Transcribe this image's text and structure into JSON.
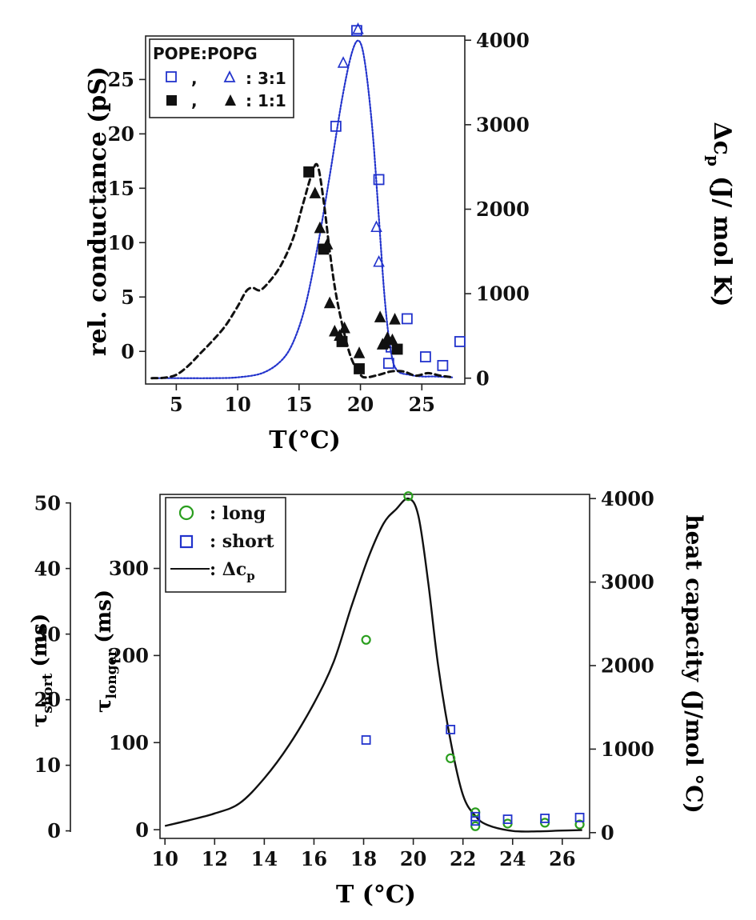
{
  "chart_data": [
    {
      "type": "line+scatter",
      "xlabel": "T(°C)",
      "ylabel_left": "rel. conductance (pS)",
      "ylabel_right": "Δc",
      "ylabel_right_sub": "p",
      "ylabel_right_units": "(J/ mol K)",
      "xlim": [
        2.5,
        28.5
      ],
      "ylim_left": [
        -3,
        29
      ],
      "ylim_right": [
        -50,
        4050
      ],
      "xticks": [
        5,
        10,
        15,
        20,
        25
      ],
      "yticks_left": [
        0,
        5,
        10,
        15,
        20,
        25
      ],
      "yticks_right": [
        0,
        1000,
        2000,
        3000,
        4000
      ],
      "legend": {
        "title": "POPE:POPG",
        "sep": ",",
        "rows": [
          {
            "label": ":  3:1",
            "color": "#2233cc",
            "markers": [
              "open-square",
              "open-triangle"
            ]
          },
          {
            "label": ":  1:1",
            "color": "#111111",
            "markers": [
              "filled-square",
              "filled-triangle"
            ]
          }
        ]
      },
      "series": [
        {
          "name": "Δcp 3:1",
          "axis": "right",
          "style": "dotted",
          "color": "#2233cc",
          "x": [
            3,
            5,
            8,
            10,
            12,
            13.5,
            14.5,
            15.5,
            16.5,
            17.5,
            18.5,
            19.3,
            19.9,
            20.4,
            21,
            21.5,
            22,
            22.5,
            23,
            24,
            25,
            26,
            27.5
          ],
          "y": [
            0,
            0,
            0,
            10,
            60,
            200,
            420,
            850,
            1550,
            2400,
            3300,
            3850,
            3990,
            3700,
            2900,
            1900,
            900,
            300,
            90,
            40,
            20,
            20,
            10
          ]
        },
        {
          "name": "Δcp 1:1",
          "axis": "right",
          "style": "dashed",
          "color": "#111111",
          "x": [
            3,
            4,
            5,
            6,
            7,
            8,
            9,
            10,
            10.7,
            11.2,
            11.8,
            12.5,
            13.5,
            14.5,
            15.3,
            16,
            16.5,
            17,
            17.5,
            18,
            18.7,
            19.3,
            20,
            20.5,
            21.5,
            22.5,
            23.5,
            24.5,
            25.5,
            26.5,
            27.5
          ],
          "y": [
            0,
            5,
            40,
            150,
            300,
            450,
            620,
            850,
            1030,
            1070,
            1040,
            1130,
            1330,
            1650,
            2050,
            2400,
            2520,
            2100,
            1500,
            1000,
            520,
            220,
            40,
            10,
            40,
            80,
            80,
            30,
            60,
            30,
            10
          ]
        },
        {
          "name": "3:1 squares",
          "axis": "left",
          "marker": "open-square",
          "color": "#2233cc",
          "x": [
            18,
            19.7,
            21.5,
            22.5,
            22.3,
            23.8,
            25.3,
            26.7,
            28.1
          ],
          "y": [
            20.7,
            29.5,
            15.8,
            0.4,
            -1.1,
            3.0,
            -0.5,
            -1.3,
            0.9
          ]
        },
        {
          "name": "3:1 triangles",
          "axis": "left",
          "marker": "open-triangle",
          "color": "#2233cc",
          "x": [
            18.6,
            19.8,
            21.3,
            21.5,
            22.1
          ],
          "y": [
            26.5,
            29.6,
            11.4,
            8.2,
            0.7
          ]
        },
        {
          "name": "1:1 squares",
          "axis": "left",
          "marker": "filled-square",
          "color": "#111111",
          "x": [
            15.8,
            17.0,
            18.5,
            19.9,
            23.0
          ],
          "y": [
            16.5,
            9.4,
            0.9,
            -1.6,
            0.2
          ]
        },
        {
          "name": "1:1 triangles",
          "axis": "left",
          "marker": "filled-triangle",
          "color": "#111111",
          "x": [
            16.3,
            16.7,
            17.3,
            17.5,
            17.9,
            18.3,
            18.7,
            19.9,
            21.8,
            22.0,
            22.2,
            22.6,
            21.6,
            22.8
          ],
          "y": [
            14.5,
            11.3,
            9.8,
            4.4,
            1.8,
            1.4,
            2.1,
            -0.2,
            0.6,
            0.7,
            1.2,
            1.0,
            3.1,
            2.9
          ]
        }
      ]
    },
    {
      "type": "line+scatter",
      "xlabel": "T (°C)",
      "ylabel_outer_left": "τshort (ms)",
      "ylabel_outer_left_main": "τ",
      "ylabel_outer_left_sub": "short",
      "ylabel_outer_left_units": "(ms)",
      "ylabel_left_main": "τ",
      "ylabel_left_sub": "longer",
      "ylabel_left_units": "(ms)",
      "ylabel_right": "heat capacity (J/mol °C)",
      "xlim": [
        9.8,
        27.1
      ],
      "ylim_left": [
        -10,
        385
      ],
      "ylim_outer": [
        -1.15,
        51.3
      ],
      "ylim_right": [
        -50,
        4050
      ],
      "xticks": [
        10,
        12,
        14,
        16,
        18,
        20,
        22,
        24,
        26
      ],
      "yticks_outer": [
        0,
        10,
        20,
        30,
        40,
        50
      ],
      "yticks_left": [
        0,
        100,
        200,
        300
      ],
      "yticks_right": [
        0,
        1000,
        2000,
        3000,
        4000
      ],
      "legend": {
        "rows": [
          {
            "label": ": long",
            "marker": "open-circle",
            "color": "#2a9e1e"
          },
          {
            "label": ": short",
            "marker": "open-square",
            "color": "#2233cc"
          },
          {
            "label": ": Δc",
            "label_sub": "p",
            "marker": "line",
            "color": "#111111"
          }
        ]
      },
      "series": [
        {
          "name": "heat capacity",
          "axis": "right",
          "style": "solid",
          "color": "#111111",
          "x": [
            10,
            11,
            12,
            13,
            14,
            15,
            16,
            16.8,
            17.5,
            18.2,
            18.8,
            19.3,
            19.8,
            20.2,
            20.6,
            21,
            21.5,
            22,
            22.5,
            23,
            24,
            25,
            26,
            26.8
          ],
          "y": [
            80,
            150,
            230,
            350,
            650,
            1050,
            1550,
            2050,
            2700,
            3300,
            3700,
            3870,
            4000,
            3800,
            3000,
            2000,
            1100,
            450,
            200,
            90,
            20,
            15,
            25,
            30
          ]
        },
        {
          "name": "long",
          "axis": "left",
          "marker": "open-circle",
          "color": "#2a9e1e",
          "x": [
            18.1,
            19.8,
            21.5,
            22.5,
            22.5,
            23.8,
            25.3,
            26.7
          ],
          "y": [
            218,
            383,
            82,
            20,
            4,
            7,
            8,
            6
          ]
        },
        {
          "name": "short",
          "axis": "left",
          "marker": "open-square",
          "color": "#2233cc",
          "x": [
            18.1,
            21.5,
            22.5,
            22.5,
            23.8,
            25.3,
            26.7
          ],
          "y": [
            103,
            115,
            15,
            10,
            12,
            13,
            14
          ]
        }
      ]
    }
  ]
}
